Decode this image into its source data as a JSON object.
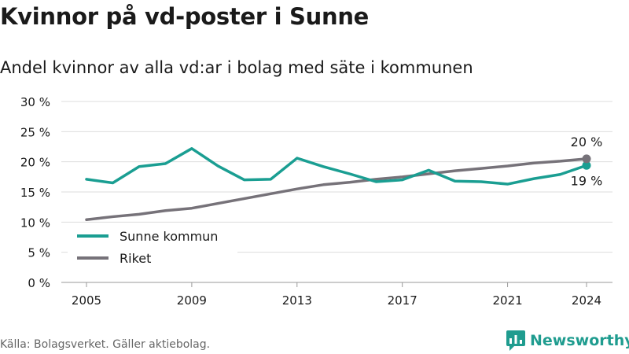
{
  "title": "Kvinnor på vd-poster i Sunne",
  "subtitle": "Andel kvinnor av alla vd:ar i bolag med säte i kommunen",
  "source": "Källa: Bolagsverket. Gäller aktiebolag.",
  "brand": "Newsworthy",
  "colors": {
    "sunne": "#1a9e92",
    "riket": "#767279",
    "grid": "#dddddd",
    "brand": "#1f9c8f"
  },
  "chart_data": {
    "type": "line",
    "x": [
      2005,
      2006,
      2007,
      2008,
      2009,
      2010,
      2011,
      2012,
      2013,
      2014,
      2015,
      2016,
      2017,
      2018,
      2019,
      2020,
      2021,
      2022,
      2023,
      2024
    ],
    "xticks": [
      2005,
      2009,
      2013,
      2017,
      2021,
      2024
    ],
    "xtick_labels": [
      "2005",
      "2009",
      "2013",
      "2017",
      "2021",
      "2024"
    ],
    "yticks": [
      0,
      5,
      10,
      15,
      20,
      25,
      30
    ],
    "ytick_labels": [
      "0 %",
      "5 %",
      "10 %",
      "15 %",
      "20 %",
      "25 %",
      "30 %"
    ],
    "ylim": [
      0,
      30
    ],
    "grid": true,
    "legend_position": "bottom-left",
    "series": [
      {
        "name": "Sunne kommun",
        "color": "#1a9e92",
        "values": [
          17.1,
          16.5,
          19.2,
          19.7,
          22.2,
          19.3,
          17.0,
          17.1,
          20.6,
          19.2,
          18.0,
          16.7,
          17.0,
          18.6,
          16.8,
          16.7,
          16.3,
          17.2,
          17.9,
          19.4
        ],
        "end_label": "19 %"
      },
      {
        "name": "Riket",
        "color": "#767279",
        "values": [
          10.4,
          10.9,
          11.3,
          11.9,
          12.3,
          13.1,
          13.9,
          14.7,
          15.5,
          16.2,
          16.6,
          17.1,
          17.5,
          18.0,
          18.5,
          18.9,
          19.3,
          19.8,
          20.1,
          20.5
        ],
        "end_label": "20 %"
      }
    ]
  }
}
